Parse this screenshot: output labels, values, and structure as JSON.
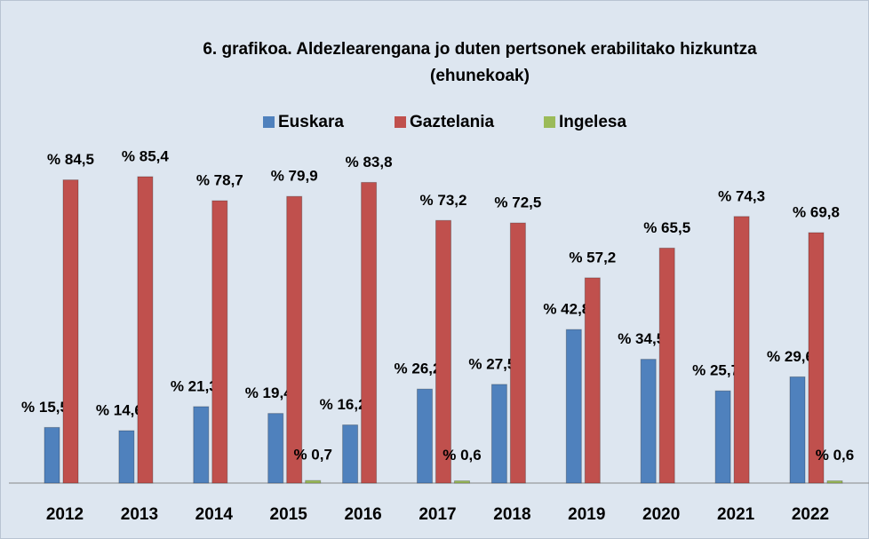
{
  "chart_data": {
    "type": "bar",
    "title": [
      "6. grafikoa. Aldezlearengana jo duten pertsonek erabilitako hizkuntza",
      "(ehunekoak)"
    ],
    "categories": [
      "2012",
      "2013",
      "2014",
      "2015",
      "2016",
      "2017",
      "2018",
      "2019",
      "2020",
      "2021",
      "2022"
    ],
    "series": [
      {
        "name": "Euskara",
        "color": "#4f81bd",
        "values": [
          15.5,
          14.6,
          21.3,
          19.4,
          16.2,
          26.2,
          27.5,
          42.8,
          34.5,
          25.7,
          29.6
        ],
        "value_labels": [
          "% 15,5",
          "% 14,6",
          "% 21,3",
          "% 19,4",
          "% 16,2",
          "% 26,2",
          "% 27,5",
          "% 42,8",
          "% 34,5",
          "% 25,7",
          "% 29,6"
        ]
      },
      {
        "name": "Gaztelania",
        "color": "#c0504d",
        "values": [
          84.5,
          85.4,
          78.7,
          79.9,
          83.8,
          73.2,
          72.5,
          57.2,
          65.5,
          74.3,
          69.8
        ],
        "value_labels": [
          "% 84,5",
          "% 85,4",
          "% 78,7",
          "% 79,9",
          "% 83,8",
          "% 73,2",
          "% 72,5",
          "% 57,2",
          "% 65,5",
          "% 74,3",
          "% 69,8"
        ]
      },
      {
        "name": "Ingelesa",
        "color": "#9bbb59",
        "values": [
          null,
          null,
          null,
          0.7,
          null,
          0.6,
          null,
          null,
          null,
          null,
          0.6
        ],
        "value_labels": [
          null,
          null,
          null,
          "% 0,7",
          null,
          "% 0,6",
          null,
          null,
          null,
          null,
          "% 0,6"
        ]
      }
    ],
    "legend": "top"
  }
}
